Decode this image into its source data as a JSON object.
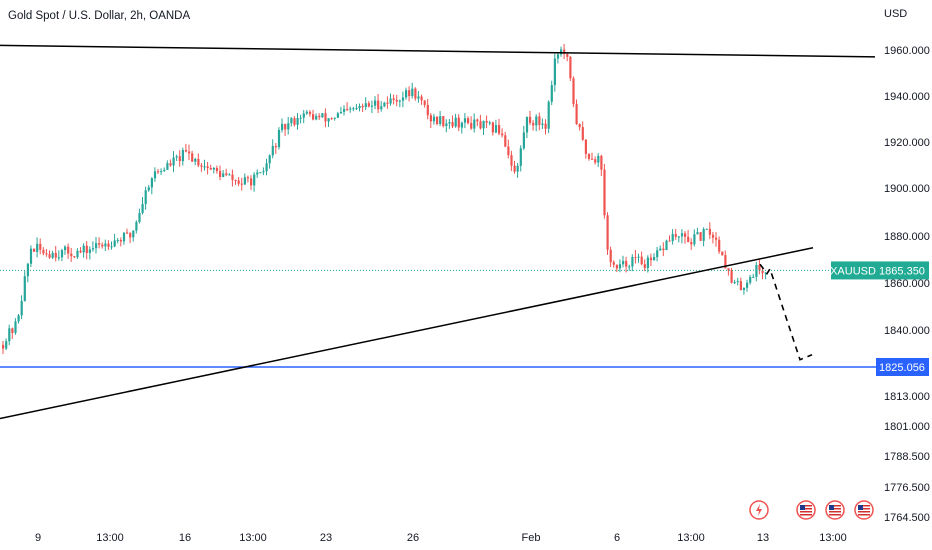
{
  "chart_title": "Gold Spot / U.S. Dollar, 2h, OANDA",
  "currency_label": "USD",
  "colors": {
    "up": "#26a69a",
    "down": "#ef5350",
    "trendline": "#000000",
    "support_line": "#2962ff",
    "last_price_badge": "#22ab94",
    "support_badge": "#2962ff",
    "price_dotted": "#22ab94"
  },
  "chart_data": {
    "type": "candlestick",
    "title": "Gold Spot / U.S. Dollar, 2h, OANDA",
    "symbol": "XAUUSD",
    "last_price": "1865.350",
    "support_level": "1825.056",
    "y_unit": "USD",
    "y_axis_scale": "mixed-nonlinear",
    "y_ticks": [
      "1960.000",
      "1940.000",
      "1920.000",
      "1900.000",
      "1880.000",
      "1860.000",
      "1840.000",
      "1813.000",
      "1801.000",
      "1788.500",
      "1776.500",
      "1764.500"
    ],
    "x_ticks": [
      "9",
      "13:00",
      "16",
      "13:00",
      "23",
      "26",
      "Feb",
      "6",
      "13:00",
      "13",
      "13:00"
    ],
    "approx_close_path": [
      {
        "x": "9",
        "y": 1835
      },
      {
        "x": "10",
        "y": 1875
      },
      {
        "x": "12",
        "y": 1873
      },
      {
        "x": "13:00",
        "y": 1878
      },
      {
        "x": "16",
        "y": 1915
      },
      {
        "x": "18",
        "y": 1910
      },
      {
        "x": "13:00",
        "y": 1905
      },
      {
        "x": "20",
        "y": 1925
      },
      {
        "x": "23",
        "y": 1930
      },
      {
        "x": "24",
        "y": 1938
      },
      {
        "x": "26",
        "y": 1942
      },
      {
        "x": "27",
        "y": 1930
      },
      {
        "x": "30",
        "y": 1925
      },
      {
        "x": "Feb",
        "y": 1960
      },
      {
        "x": "3",
        "y": 1920
      },
      {
        "x": "4",
        "y": 1875
      },
      {
        "x": "6",
        "y": 1870
      },
      {
        "x": "13:00",
        "y": 1880
      },
      {
        "x": "9",
        "y": 1890
      },
      {
        "x": "10",
        "y": 1860
      },
      {
        "x": "13",
        "y": 1865
      }
    ],
    "trendlines": [
      {
        "name": "upper resistance",
        "from": 1962,
        "to": 1957
      },
      {
        "name": "rising support",
        "from": 1804,
        "to": 1875
      }
    ],
    "projection": "dashed path down to 1825.056",
    "grid": false,
    "legend": "none"
  },
  "event_icons": [
    "lightning-icon",
    "us-flag-icon",
    "us-flag-icon",
    "us-flag-icon"
  ]
}
